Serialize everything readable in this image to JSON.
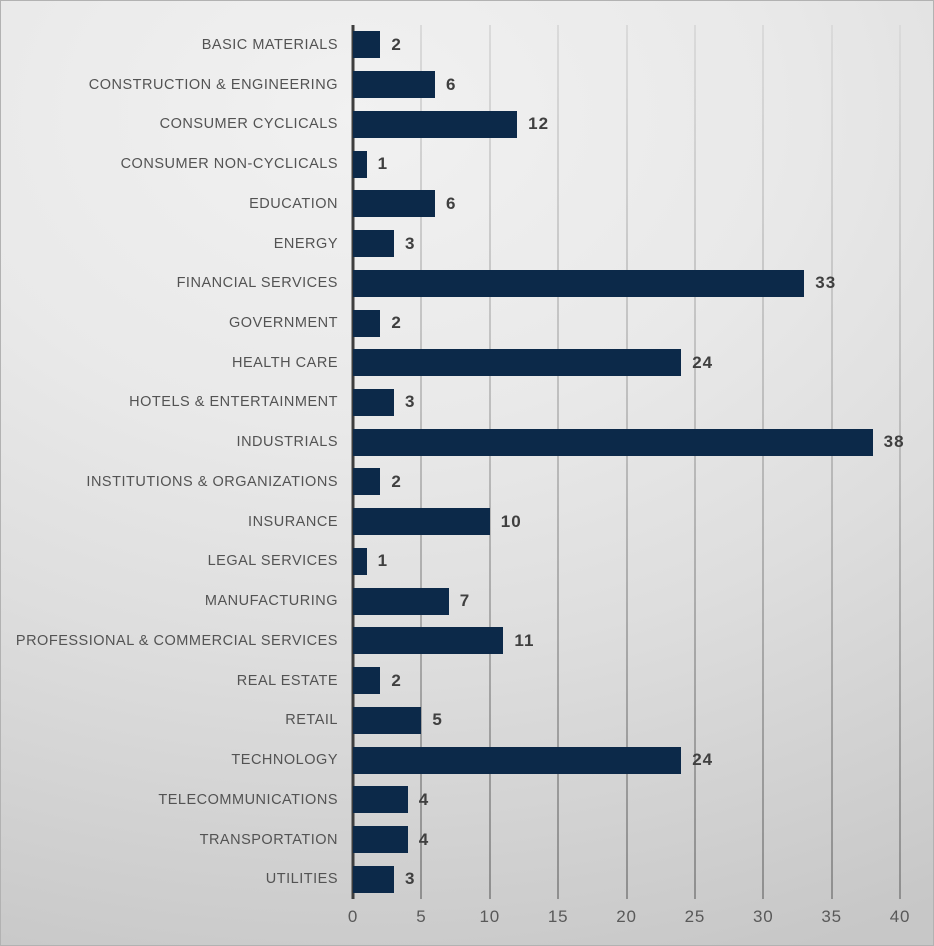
{
  "chart_data": {
    "type": "bar",
    "orientation": "horizontal",
    "title": "",
    "xlabel": "",
    "ylabel": "",
    "xlim": [
      0,
      40
    ],
    "x_ticks": [
      0,
      5,
      10,
      15,
      20,
      25,
      30,
      35,
      40
    ],
    "grid": true,
    "legend": "none",
    "categories": [
      "BASIC MATERIALS",
      "CONSTRUCTION & ENGINEERING",
      "CONSUMER CYCLICALS",
      "CONSUMER NON-CYCLICALS",
      "EDUCATION",
      "ENERGY",
      "FINANCIAL SERVICES",
      "GOVERNMENT",
      "HEALTH CARE",
      "HOTELS & ENTERTAINMENT",
      "INDUSTRIALS",
      "INSTITUTIONS & ORGANIZATIONS",
      "INSURANCE",
      "LEGAL SERVICES",
      "MANUFACTURING",
      "PROFESSIONAL & COMMERCIAL SERVICES",
      "REAL ESTATE",
      "RETAIL",
      "TECHNOLOGY",
      "TELECOMMUNICATIONS",
      "TRANSPORTATION",
      "UTILITIES"
    ],
    "values": [
      2,
      6,
      12,
      1,
      6,
      3,
      33,
      2,
      24,
      3,
      38,
      2,
      10,
      1,
      7,
      11,
      2,
      5,
      24,
      4,
      4,
      3
    ],
    "colors": {
      "bar": "#0c2949",
      "value_label": "#3f3f3f",
      "category_label": "#535353",
      "tick_label": "#595959",
      "gridline_top": "#dadada",
      "gridline_bottom": "#8f8f8f",
      "axis_line": "#3e3e3e"
    }
  }
}
